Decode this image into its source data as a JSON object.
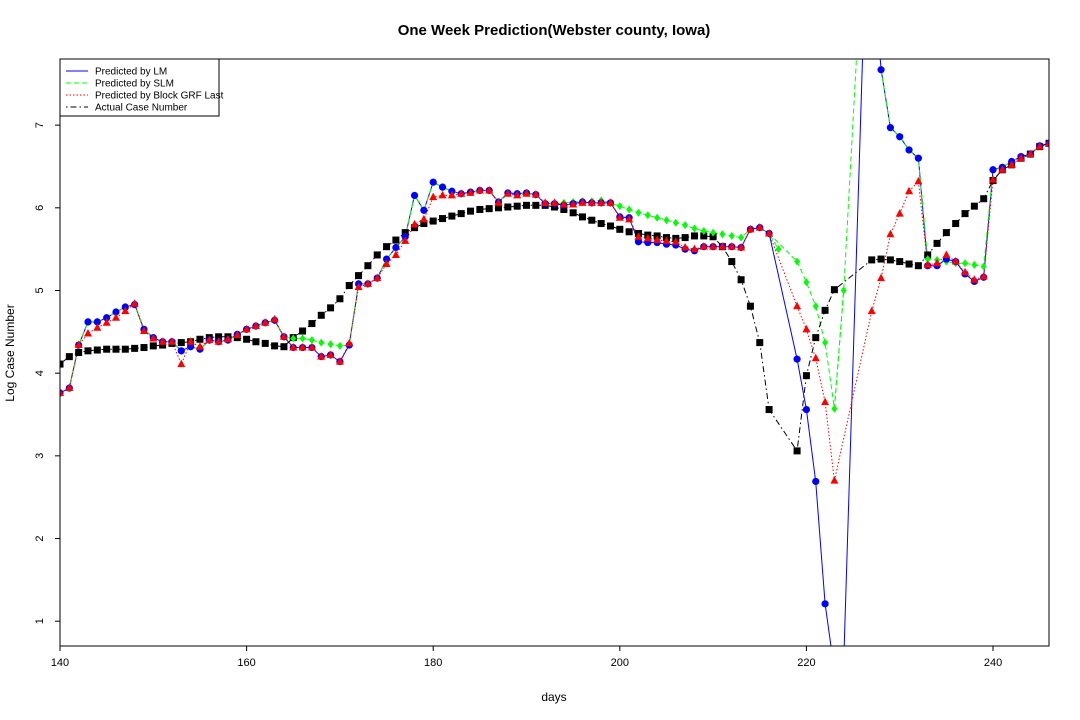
{
  "chart_data": {
    "type": "line",
    "title": "One Week Prediction(Webster county, Iowa)",
    "xlabel": "days",
    "ylabel": "Log Case Number",
    "xlim": [
      140,
      246
    ],
    "ylim": [
      0.7,
      7.8
    ],
    "xticks": [
      140,
      160,
      180,
      200,
      220,
      240
    ],
    "yticks": [
      1,
      2,
      3,
      4,
      5,
      6,
      7
    ],
    "legend_position": "top-left",
    "x": [
      140,
      141,
      142,
      143,
      144,
      145,
      146,
      147,
      148,
      149,
      150,
      151,
      152,
      153,
      154,
      155,
      156,
      157,
      158,
      159,
      160,
      161,
      162,
      163,
      164,
      165,
      166,
      167,
      168,
      169,
      170,
      171,
      172,
      173,
      174,
      175,
      176,
      177,
      178,
      179,
      180,
      181,
      182,
      183,
      184,
      185,
      186,
      187,
      188,
      189,
      190,
      191,
      192,
      193,
      194,
      195,
      196,
      197,
      198,
      199,
      200,
      201,
      202,
      203,
      204,
      205,
      206,
      207,
      208,
      209,
      210,
      211,
      212,
      213,
      214,
      215,
      216,
      217,
      218,
      219,
      220,
      221,
      222,
      223,
      224,
      225,
      226,
      227,
      228,
      229,
      230,
      231,
      232,
      233,
      234,
      235,
      236,
      237,
      238,
      239,
      240,
      241,
      242,
      243,
      244,
      245,
      246
    ],
    "series": [
      {
        "name": "Predicted by LM",
        "color": "#0000ff",
        "line_style": "solid",
        "marker": "circle",
        "values": [
          3.76,
          3.82,
          4.34,
          4.62,
          4.62,
          4.67,
          4.74,
          4.8,
          4.83,
          4.53,
          4.43,
          4.38,
          4.38,
          4.27,
          4.32,
          4.29,
          4.4,
          4.38,
          4.4,
          4.47,
          4.53,
          4.57,
          4.61,
          4.64,
          4.44,
          4.31,
          4.31,
          4.31,
          4.2,
          4.22,
          4.14,
          4.34,
          5.08,
          5.08,
          5.15,
          5.38,
          5.52,
          5.65,
          6.15,
          5.97,
          6.31,
          6.25,
          6.2,
          6.17,
          6.19,
          6.21,
          6.21,
          6.07,
          6.18,
          6.17,
          6.18,
          6.16,
          6.05,
          6.05,
          6.03,
          6.05,
          6.07,
          6.06,
          6.06,
          6.06,
          5.89,
          5.88,
          5.59,
          5.58,
          5.58,
          5.56,
          5.55,
          5.5,
          5.48,
          5.53,
          5.53,
          5.53,
          5.53,
          5.52,
          5.74,
          5.76,
          5.69,
          null,
          null,
          4.17,
          3.56,
          2.69,
          1.21,
          0.4,
          0.5,
          null,
          null,
          null,
          7.67,
          6.97,
          6.86,
          6.7,
          6.6,
          5.3,
          5.3,
          5.38,
          5.35,
          5.2,
          5.11,
          5.16,
          6.46,
          6.49,
          6.56,
          6.62,
          6.65,
          6.75,
          6.78
        ]
      },
      {
        "name": "Predicted by SLM",
        "color": "#00ff00",
        "line_style": "dashed",
        "marker": "diamond",
        "values": [
          3.76,
          3.82,
          4.34,
          4.62,
          4.62,
          4.67,
          4.74,
          4.8,
          4.83,
          4.53,
          4.43,
          4.38,
          4.38,
          4.27,
          4.32,
          4.29,
          4.4,
          4.38,
          4.4,
          4.47,
          4.53,
          4.57,
          4.61,
          4.64,
          4.44,
          4.42,
          4.42,
          4.4,
          4.37,
          4.35,
          4.33,
          4.34,
          5.08,
          5.08,
          5.15,
          5.38,
          5.52,
          5.65,
          6.15,
          5.97,
          6.31,
          6.25,
          6.2,
          6.17,
          6.19,
          6.21,
          6.21,
          6.07,
          6.18,
          6.17,
          6.18,
          6.16,
          6.05,
          6.05,
          6.06,
          6.07,
          6.08,
          6.08,
          6.09,
          6.06,
          6.02,
          5.98,
          5.94,
          5.91,
          5.88,
          5.85,
          5.82,
          5.79,
          5.75,
          5.72,
          5.7,
          5.68,
          5.66,
          5.64,
          5.74,
          5.76,
          5.69,
          5.5,
          null,
          5.35,
          5.1,
          4.81,
          4.37,
          3.57,
          5.0,
          null,
          null,
          null,
          7.67,
          6.97,
          6.86,
          6.7,
          6.6,
          5.38,
          5.37,
          5.35,
          5.33,
          5.33,
          5.31,
          5.29,
          6.46,
          6.49,
          6.56,
          6.62,
          6.65,
          6.75,
          6.78
        ]
      },
      {
        "name": "Predicted by Block GRF Last",
        "color": "#ff0000",
        "line_style": "dotted",
        "marker": "triangle",
        "values": [
          3.76,
          3.82,
          4.34,
          4.48,
          4.55,
          4.61,
          4.67,
          4.75,
          4.84,
          4.51,
          4.42,
          4.38,
          4.38,
          4.11,
          4.38,
          4.32,
          4.4,
          4.38,
          4.41,
          4.46,
          4.53,
          4.57,
          4.61,
          4.65,
          4.44,
          4.31,
          4.31,
          4.31,
          4.2,
          4.22,
          4.14,
          4.36,
          5.04,
          5.08,
          5.15,
          5.32,
          5.43,
          5.6,
          5.8,
          5.86,
          6.13,
          6.15,
          6.15,
          6.17,
          6.18,
          6.21,
          6.21,
          6.06,
          6.17,
          6.15,
          6.17,
          6.16,
          6.06,
          6.06,
          6.04,
          6.04,
          6.06,
          6.06,
          6.06,
          6.06,
          5.88,
          5.86,
          5.65,
          5.63,
          5.61,
          5.6,
          5.59,
          5.52,
          5.5,
          5.53,
          5.53,
          5.53,
          5.53,
          5.52,
          5.74,
          5.76,
          5.69,
          null,
          null,
          4.81,
          4.53,
          4.18,
          3.65,
          2.7,
          null,
          null,
          null,
          4.75,
          5.15,
          5.68,
          5.93,
          6.2,
          6.32,
          5.31,
          5.33,
          5.43,
          5.35,
          5.22,
          5.13,
          5.17,
          6.34,
          6.46,
          6.52,
          6.6,
          6.65,
          6.74,
          6.78
        ]
      },
      {
        "name": "Actual Case Number",
        "color": "#000000",
        "line_style": "dotdash",
        "marker": "square",
        "values": [
          4.11,
          4.2,
          4.25,
          4.27,
          4.28,
          4.29,
          4.29,
          4.29,
          4.3,
          4.31,
          4.33,
          4.34,
          4.36,
          4.37,
          4.38,
          4.41,
          4.43,
          4.44,
          4.44,
          4.43,
          4.41,
          4.38,
          4.36,
          4.33,
          4.32,
          4.43,
          4.51,
          4.6,
          4.7,
          4.79,
          4.9,
          5.06,
          5.18,
          5.3,
          5.43,
          5.53,
          5.61,
          5.7,
          5.76,
          5.81,
          5.84,
          5.87,
          5.9,
          5.93,
          5.96,
          5.98,
          5.99,
          6.0,
          6.01,
          6.02,
          6.03,
          6.03,
          6.03,
          6.01,
          5.98,
          5.94,
          5.89,
          5.85,
          5.81,
          5.78,
          5.74,
          5.71,
          5.69,
          5.67,
          5.66,
          5.64,
          5.63,
          5.64,
          5.66,
          5.66,
          5.65,
          5.53,
          5.35,
          5.13,
          4.81,
          4.37,
          3.56,
          null,
          null,
          3.06,
          3.97,
          4.43,
          4.76,
          5.01,
          null,
          null,
          null,
          5.37,
          5.38,
          5.37,
          5.35,
          5.32,
          5.3,
          5.43,
          5.57,
          5.7,
          5.81,
          5.93,
          6.02,
          6.11,
          6.33,
          6.46,
          6.52,
          6.6,
          6.65,
          6.74,
          6.78
        ]
      }
    ]
  }
}
